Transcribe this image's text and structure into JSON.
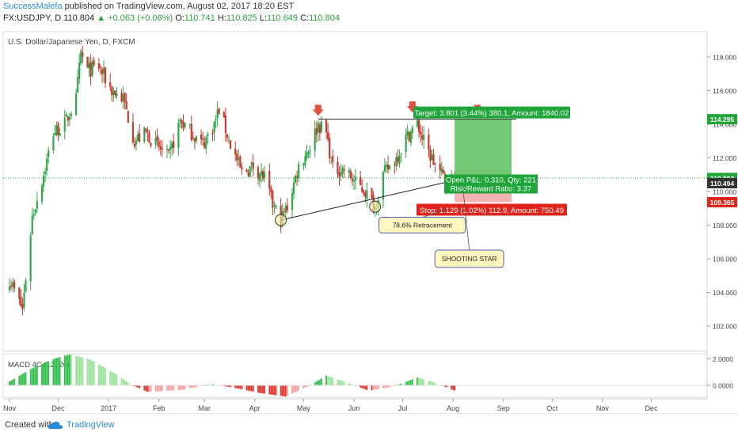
{
  "header": {
    "author": "SuccessMalefa",
    "published": "published on TradingView.com, August 02, 2017 18:20 EST",
    "symbol": "FX:USDJPY, D",
    "last": "110.804",
    "change_arrow": "▲",
    "change": "+0.063 (+0.06%)",
    "o_label": "O:",
    "o": "110.741",
    "h_label": "H:",
    "h": "110.825",
    "l_label": "L:",
    "l": "110.649",
    "c_label": "C:",
    "c": "110.804"
  },
  "footer": {
    "created_with": "Created with",
    "brand": "TradingView",
    "logo_icon": "tradingview-cloud-icon"
  },
  "colors": {
    "up": "#2ea84a",
    "down": "#c8392e",
    "accent": "#2a8ad8",
    "target": "#1fa53a",
    "stop": "#e0241b",
    "zone_green": "#5bbf5b",
    "zone_red": "#f2a0a0",
    "label_bg": "#fff7c0"
  },
  "chart_data": [
    {
      "type": "candlestick",
      "title": "U.S. Dollar/Japanese Yen, D, FXCM",
      "ylim": [
        100.5,
        119.5
      ],
      "yticks": [
        102,
        104,
        106,
        108,
        110,
        112,
        114,
        116,
        118
      ],
      "ytick_labels": [
        "102.000",
        "104.000",
        "106.000",
        "108.000",
        "110.000",
        "112.000",
        "114.000",
        "116.000",
        "118.000"
      ],
      "x_labels": [
        "Nov",
        "Dec",
        "2017",
        "Feb",
        "Mar",
        "Apr",
        "May",
        "Jun",
        "Jul",
        "Aug",
        "Sep",
        "Oct",
        "Nov",
        "Dec"
      ],
      "x_label_dates": [
        "2016-11-01",
        "2016-12-01",
        "2017-01-01",
        "2017-02-01",
        "2017-03-01",
        "2017-04-01",
        "2017-05-01",
        "2017-06-01",
        "2017-07-01",
        "2017-08-01",
        "2017-09-01",
        "2017-10-01",
        "2017-11-01",
        "2017-12-01"
      ],
      "xlim": [
        "2016-11-01",
        "2017-12-31"
      ],
      "close_path": [
        [
          "2016-11-01",
          104.8
        ],
        [
          "2016-11-09",
          103.0
        ],
        [
          "2016-11-15",
          108.5
        ],
        [
          "2016-11-22",
          111.0
        ],
        [
          "2016-11-28",
          113.5
        ],
        [
          "2016-12-05",
          114.0
        ],
        [
          "2016-12-12",
          115.5
        ],
        [
          "2016-12-15",
          118.2
        ],
        [
          "2016-12-19",
          117.2
        ],
        [
          "2016-12-26",
          117.4
        ],
        [
          "2017-01-03",
          116.0
        ],
        [
          "2017-01-10",
          115.5
        ],
        [
          "2017-01-17",
          113.0
        ],
        [
          "2017-01-24",
          113.5
        ],
        [
          "2017-01-31",
          112.7
        ],
        [
          "2017-02-07",
          112.0
        ],
        [
          "2017-02-14",
          114.2
        ],
        [
          "2017-02-21",
          113.5
        ],
        [
          "2017-02-28",
          112.8
        ],
        [
          "2017-03-07",
          114.0
        ],
        [
          "2017-03-10",
          114.9
        ],
        [
          "2017-03-17",
          112.8
        ],
        [
          "2017-03-24",
          111.1
        ],
        [
          "2017-03-31",
          111.5
        ],
        [
          "2017-04-07",
          110.8
        ],
        [
          "2017-04-12",
          109.2
        ],
        [
          "2017-04-17",
          108.3
        ],
        [
          "2017-04-21",
          109.1
        ],
        [
          "2017-04-28",
          111.5
        ],
        [
          "2017-05-05",
          112.7
        ],
        [
          "2017-05-10",
          114.0
        ],
        [
          "2017-05-15",
          113.5
        ],
        [
          "2017-05-19",
          111.3
        ],
        [
          "2017-05-26",
          111.3
        ],
        [
          "2017-06-02",
          110.5
        ],
        [
          "2017-06-08",
          110.0
        ],
        [
          "2017-06-14",
          109.1
        ],
        [
          "2017-06-19",
          111.0
        ],
        [
          "2017-06-27",
          112.0
        ],
        [
          "2017-07-03",
          113.2
        ],
        [
          "2017-07-10",
          114.0
        ],
        [
          "2017-07-13",
          113.2
        ],
        [
          "2017-07-18",
          112.1
        ],
        [
          "2017-07-24",
          111.1
        ],
        [
          "2017-07-28",
          110.7
        ],
        [
          "2017-08-02",
          110.8
        ]
      ],
      "price_tags": [
        {
          "value": "114.295",
          "y": 114.295,
          "color": "#1fa53a"
        },
        {
          "value": "110.804",
          "y": 110.804,
          "color": "#1fa53a"
        },
        {
          "value": "110.494",
          "y": 110.494,
          "color": "#333333"
        },
        {
          "value": "109.365",
          "y": 109.365,
          "color": "#e0241b"
        }
      ],
      "neckline": {
        "y": 114.295,
        "from": "2017-05-10",
        "to": "2017-09-09"
      },
      "current_price_line": 110.804,
      "trendline": {
        "from": [
          "2017-04-17",
          108.3
        ],
        "to": [
          "2017-08-17",
          111.0
        ]
      },
      "position": {
        "entry": 110.494,
        "target": 114.295,
        "stop": 109.365,
        "from": "2017-08-02",
        "to": "2017-09-06",
        "target_label": "Target: 3.801 (3.44%) 380.1, Amount: 1840.02",
        "stop_label": "Stop: 1.129 (1.02%) 112.9, Amount: 750.49",
        "pnl_label": "Open P&L: 0.310, Qty: 221",
        "rr_label": "Risk/Reward Ratio: 3.37"
      },
      "down_arrows": [
        [
          "2017-05-10",
          114.5
        ],
        [
          "2017-07-07",
          114.7
        ],
        [
          "2017-08-16",
          114.5
        ]
      ],
      "circles": [
        [
          "2017-04-17",
          108.3
        ],
        [
          "2017-06-14",
          109.1
        ]
      ],
      "annotations": [
        {
          "text": "78.6% Retracement",
          "at": [
            "2017-07-13",
            108.0
          ],
          "pointer": [
            "2017-07-28",
            108.9
          ]
        },
        {
          "text": "SHOOTING STAR",
          "at": [
            "2017-08-11",
            106.0
          ],
          "pointer": [
            "2017-08-07",
            110.3
          ]
        }
      ]
    },
    {
      "type": "bar",
      "title": "MACD 4C (12, 26)",
      "ylim": [
        -0.9,
        2.4
      ],
      "yticks": [
        0,
        2
      ],
      "ytick_labels": [
        "0.0000",
        "2.0000"
      ],
      "histogram_path": [
        [
          "2016-11-01",
          0.3
        ],
        [
          "2016-11-15",
          1.3
        ],
        [
          "2016-11-28",
          2.0
        ],
        [
          "2016-12-08",
          2.35
        ],
        [
          "2016-12-20",
          2.0
        ],
        [
          "2017-01-05",
          0.9
        ],
        [
          "2017-01-15",
          0.05
        ],
        [
          "2017-01-25",
          -0.5
        ],
        [
          "2017-02-15",
          -0.35
        ],
        [
          "2017-03-05",
          0.1
        ],
        [
          "2017-03-20",
          -0.2
        ],
        [
          "2017-04-05",
          -0.6
        ],
        [
          "2017-04-20",
          -0.85
        ],
        [
          "2017-05-05",
          0.0
        ],
        [
          "2017-05-15",
          0.75
        ],
        [
          "2017-05-28",
          0.2
        ],
        [
          "2017-06-10",
          -0.4
        ],
        [
          "2017-06-25",
          -0.1
        ],
        [
          "2017-07-10",
          0.6
        ],
        [
          "2017-07-20",
          0.25
        ],
        [
          "2017-08-02",
          -0.4
        ]
      ]
    }
  ]
}
